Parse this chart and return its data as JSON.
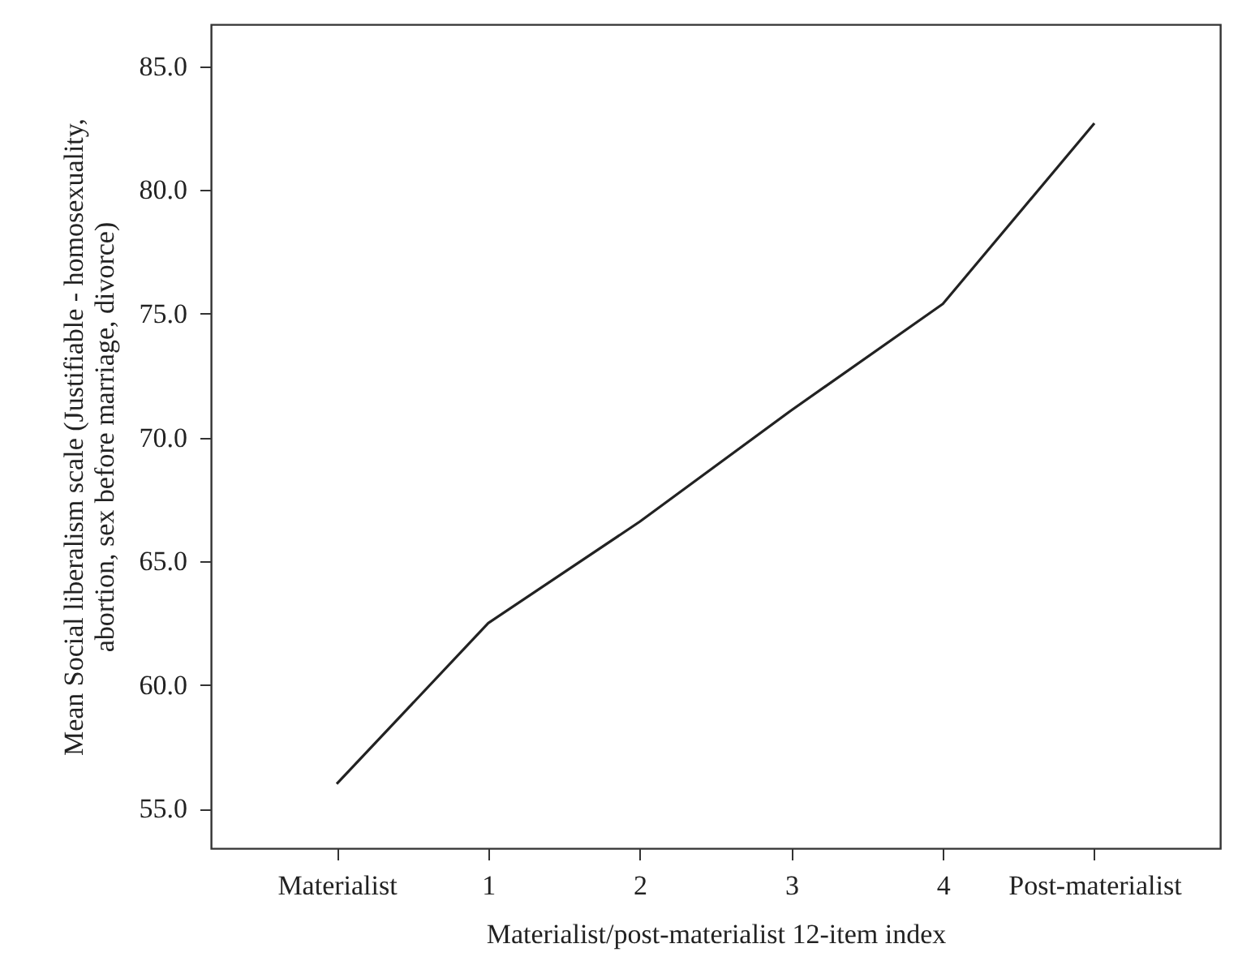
{
  "chart_data": {
    "type": "line",
    "xlabel": "Materialist/post-materialist 12-item index",
    "ylabel": "Mean Social liberalism scale (Justifiable - homosexuality, abortion, sex before marriage, divorce)",
    "categories": [
      "Materialist",
      "1",
      "2",
      "3",
      "4",
      "Post-materialist"
    ],
    "series": [
      {
        "color": "#222222",
        "values": [
          56.0,
          62.5,
          66.6,
          71.1,
          75.4,
          82.7
        ]
      }
    ],
    "ylim": [
      53.4,
      86.7
    ],
    "yticks": [
      {
        "value": 55,
        "label": "55.0"
      },
      {
        "value": 60,
        "label": "60.0"
      },
      {
        "value": 65,
        "label": "65.0"
      },
      {
        "value": 70,
        "label": "70.0"
      },
      {
        "value": 75,
        "label": "75.0"
      },
      {
        "value": 80,
        "label": "80.0"
      },
      {
        "value": 85,
        "label": "85.0"
      }
    ],
    "grid": false,
    "marker": "none",
    "line_style": "solid"
  }
}
